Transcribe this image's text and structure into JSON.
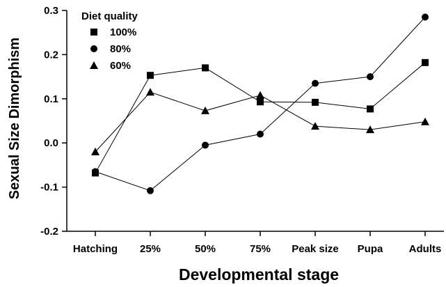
{
  "chart_data": {
    "type": "line",
    "title": "",
    "xlabel": "Developmental stage",
    "ylabel": "Sexual Size Dimorphism",
    "categories": [
      "Hatching",
      "25%",
      "50%",
      "75%",
      "Peak size",
      "Pupa",
      "Adults"
    ],
    "ylim": [
      -0.2,
      0.3
    ],
    "yticks": [
      "-0.2",
      "-0.1",
      "0.0",
      "0.1",
      "0.2",
      "0.3"
    ],
    "ytick_values": [
      -0.2,
      -0.1,
      0.0,
      0.1,
      0.2,
      0.3
    ],
    "grid": false,
    "legend": {
      "title": "Diet quality",
      "placement": "top-left"
    },
    "series": [
      {
        "name": "100%",
        "marker": "square",
        "values": [
          -0.068,
          0.153,
          0.17,
          0.093,
          0.092,
          0.077,
          0.182
        ]
      },
      {
        "name": "80%",
        "marker": "circle",
        "values": [
          -0.065,
          -0.108,
          -0.005,
          0.02,
          0.135,
          0.15,
          0.285
        ]
      },
      {
        "name": "60%",
        "marker": "triangle",
        "values": [
          -0.02,
          0.115,
          0.073,
          0.108,
          0.038,
          0.03,
          0.048
        ]
      }
    ],
    "colors": {
      "line": "#000000",
      "marker": "#000000"
    }
  }
}
